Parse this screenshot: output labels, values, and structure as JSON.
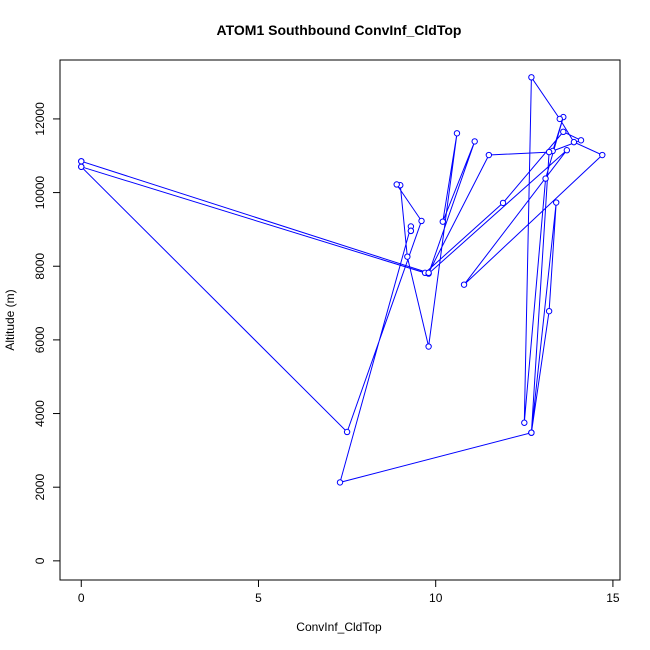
{
  "chart_data": {
    "type": "line",
    "title": "ATOM1 Southbound ConvInf_CldTop",
    "xlabel": "ConvInf_CldTop",
    "ylabel": "Altitude (m)",
    "xlim": [
      -0.6,
      15.2
    ],
    "ylim": [
      -520,
      13600
    ],
    "xticks": [
      0,
      5,
      10,
      15
    ],
    "yticks": [
      0,
      2000,
      4000,
      6000,
      8000,
      10000,
      12000
    ],
    "grid": false,
    "color": "#0000ff",
    "series": [
      {
        "x": [
          0.0,
          0.0,
          9.7,
          11.9,
          13.6,
          14.1,
          13.3,
          13.6,
          13.1,
          12.5,
          12.7,
          13.5,
          13.9,
          14.7,
          10.8,
          13.7,
          9.8,
          11.1,
          10.2,
          10.6,
          9.8,
          9.2,
          9.0,
          8.9,
          9.6,
          7.5,
          0.0,
          0.0,
          9.8,
          11.5,
          13.2,
          12.7,
          13.2,
          13.4,
          12.7,
          7.3,
          9.3,
          9.3,
          9.3
        ],
        "y": [
          10850,
          10700,
          7820,
          9720,
          11650,
          11420,
          11130,
          12050,
          10380,
          3750,
          13130,
          12000,
          11370,
          11020,
          7500,
          11150,
          7800,
          11390,
          9210,
          11610,
          5820,
          8260,
          10200,
          10220,
          9230,
          3500,
          10700,
          10850,
          7820,
          11020,
          11100,
          3480,
          6780,
          9730,
          3480,
          2130,
          9080,
          8960,
          8960
        ]
      }
    ]
  }
}
